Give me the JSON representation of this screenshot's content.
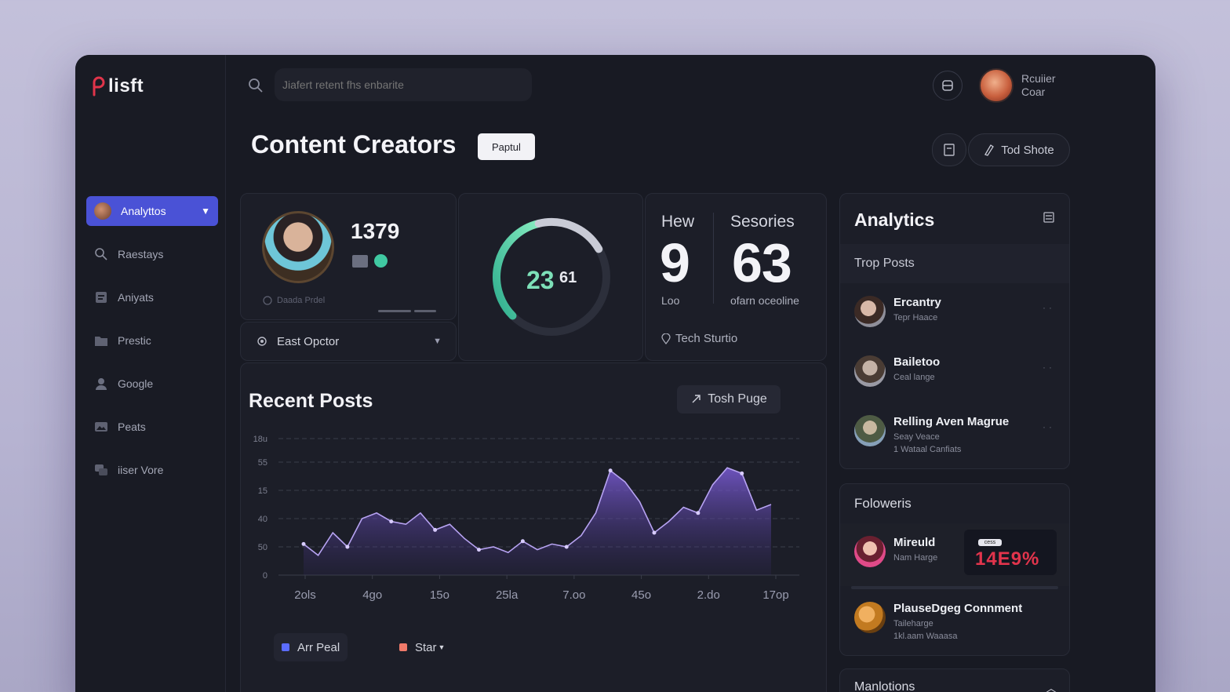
{
  "app": {
    "name": "lisft"
  },
  "search": {
    "placeholder": "Jiafert retent fhs enbarite"
  },
  "user": {
    "name": "Rcuiier Coar"
  },
  "sidebar": {
    "items": [
      {
        "label": "Analyttos",
        "icon": "avatar"
      },
      {
        "label": "Raestays",
        "icon": "search-person-icon"
      },
      {
        "label": "Aniyats",
        "icon": "document-icon"
      },
      {
        "label": "Prestic",
        "icon": "folder-icon"
      },
      {
        "label": "Google",
        "icon": "user-icon"
      },
      {
        "label": "Peats",
        "icon": "image-icon"
      },
      {
        "label": "iiser Vore",
        "icon": "chat-icon"
      }
    ]
  },
  "page": {
    "title": "Content Creators",
    "badge": "Paptul",
    "action_label": "Tod Shote"
  },
  "profile_card": {
    "value": "1379",
    "footer": "Daada Prdel",
    "select_label": "East Opctor"
  },
  "gauge": {
    "value": "23",
    "suffix": "61",
    "fraction": 0.72
  },
  "stats": {
    "left_label": "Hew",
    "left_value": "9",
    "left_sub": "Loo",
    "right_label": "Sesories",
    "right_value": "63",
    "right_sub": "ofarn oceoline",
    "location": "Tech Sturtio"
  },
  "recent_posts": {
    "title": "Recent Posts",
    "button": "Tosh Puge",
    "legend": [
      {
        "label": "Arr Peal",
        "color": "#5b6cff"
      },
      {
        "label": "Star",
        "color": "#f07a6a"
      }
    ]
  },
  "chart_data": {
    "type": "area",
    "y_ticks": [
      "0",
      "50",
      "40",
      "15",
      "55",
      "18u"
    ],
    "x_ticks": [
      "2ols",
      "4go",
      "15o",
      "25la",
      "7.oo",
      "45o",
      "2.do",
      "17op"
    ],
    "series": [
      {
        "name": "Arr Peal",
        "color": "#7b5cd6",
        "values": [
          1.1,
          0.7,
          1.5,
          1.0,
          2.0,
          2.2,
          1.9,
          1.8,
          2.2,
          1.6,
          1.8,
          1.3,
          0.9,
          1.0,
          0.8,
          1.2,
          0.9,
          1.1,
          1.0,
          1.4,
          2.2,
          3.7,
          3.3,
          2.6,
          1.5,
          1.9,
          2.4,
          2.2,
          3.2,
          3.8,
          3.6,
          2.3,
          2.5
        ]
      }
    ],
    "ylim": [
      0,
      5
    ]
  },
  "analytics": {
    "title": "Analytics",
    "subtitle": "Trop Posts",
    "people": [
      {
        "name": "Ercantry",
        "sub": "Tepr Haace",
        "sub2": ""
      },
      {
        "name": "Bailetoo",
        "sub": "Ceal lange",
        "sub2": ""
      },
      {
        "name": "Relling Aven Magrue",
        "sub": "Seay Veace",
        "sub2": "1 Wataal Canfiats"
      }
    ]
  },
  "followers": {
    "title": "Foloweris",
    "top": {
      "name": "Mireuld",
      "sub": "Nam Harge",
      "chip": "cess",
      "value": "14E9%"
    },
    "bottom": {
      "name": "PlauseDgeg Connment",
      "sub": "Taileharge",
      "sub2": "1kl.aam Waaasa"
    }
  },
  "mentions": {
    "title": "Manlotions"
  }
}
